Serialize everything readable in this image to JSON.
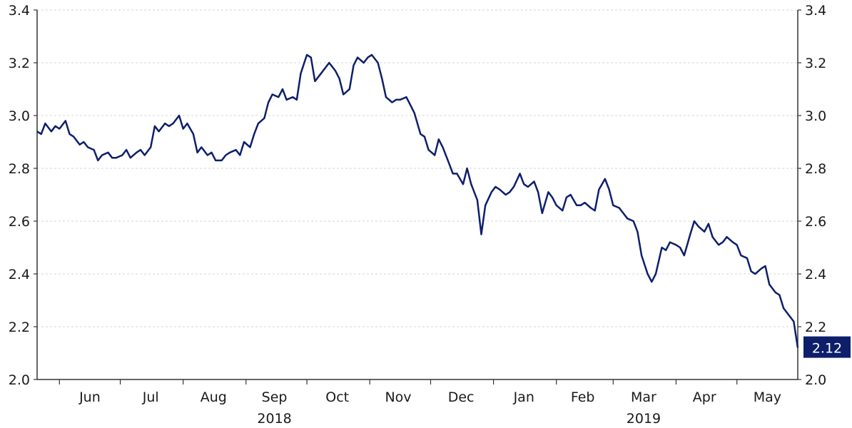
{
  "colors": {
    "line": "#0d1f6b",
    "axis": "#333333",
    "grid": "#d4d4d4",
    "badge_bg": "#0d1f6b",
    "badge_text": "#ffffff"
  },
  "chart_data": {
    "type": "line",
    "title": "",
    "xlabel": "",
    "ylabel": "",
    "ylim": [
      2.0,
      3.4
    ],
    "y_ticks": [
      "2.0",
      "2.2",
      "2.4",
      "2.6",
      "2.8",
      "3.0",
      "3.2",
      "3.4"
    ],
    "y_ticks_right": [
      "2.0",
      "2.2",
      "2.4",
      "2.6",
      "2.8",
      "3.0",
      "3.2",
      "3.4"
    ],
    "grid": "horizontal dashed",
    "x_range": [
      "2018-05-21",
      "2019-05-31"
    ],
    "month_labels": [
      {
        "label": "Jun",
        "date": "2018-06-16"
      },
      {
        "label": "Jul",
        "date": "2018-07-16"
      },
      {
        "label": "Aug",
        "date": "2018-08-16"
      },
      {
        "label": "Sep",
        "date": "2018-09-15"
      },
      {
        "label": "Oct",
        "date": "2018-10-16"
      },
      {
        "label": "Nov",
        "date": "2018-11-15"
      },
      {
        "label": "Dec",
        "date": "2018-12-16"
      },
      {
        "label": "Jan",
        "date": "2019-01-16"
      },
      {
        "label": "Feb",
        "date": "2019-02-14"
      },
      {
        "label": "Mar",
        "date": "2019-03-16"
      },
      {
        "label": "Apr",
        "date": "2019-04-15"
      },
      {
        "label": "May",
        "date": "2019-05-16"
      }
    ],
    "month_boundaries": [
      "2018-06-01",
      "2018-07-01",
      "2018-08-01",
      "2018-09-01",
      "2018-10-01",
      "2018-11-01",
      "2018-12-01",
      "2019-01-01",
      "2019-02-01",
      "2019-03-01",
      "2019-04-01",
      "2019-05-01",
      "2019-06-01"
    ],
    "year_labels": [
      {
        "label": "2018",
        "date": "2018-09-15"
      },
      {
        "label": "2019",
        "date": "2019-03-16"
      }
    ],
    "last_value_label": "2.12",
    "series": [
      {
        "x": [
          "2018-05-21",
          "2018-05-23",
          "2018-05-25",
          "2018-05-28",
          "2018-05-30",
          "2018-06-01",
          "2018-06-04",
          "2018-06-06",
          "2018-06-08",
          "2018-06-11",
          "2018-06-13",
          "2018-06-15",
          "2018-06-18",
          "2018-06-20",
          "2018-06-22",
          "2018-06-25",
          "2018-06-27",
          "2018-06-29",
          "2018-07-02",
          "2018-07-04",
          "2018-07-06",
          "2018-07-09",
          "2018-07-11",
          "2018-07-13",
          "2018-07-16",
          "2018-07-18",
          "2018-07-20",
          "2018-07-23",
          "2018-07-25",
          "2018-07-27",
          "2018-07-30",
          "2018-08-01",
          "2018-08-03",
          "2018-08-06",
          "2018-08-08",
          "2018-08-10",
          "2018-08-13",
          "2018-08-15",
          "2018-08-17",
          "2018-08-20",
          "2018-08-22",
          "2018-08-24",
          "2018-08-27",
          "2018-08-29",
          "2018-08-31",
          "2018-09-03",
          "2018-09-05",
          "2018-09-07",
          "2018-09-10",
          "2018-09-12",
          "2018-09-14",
          "2018-09-17",
          "2018-09-19",
          "2018-09-21",
          "2018-09-24",
          "2018-09-26",
          "2018-09-28",
          "2018-10-01",
          "2018-10-03",
          "2018-10-05",
          "2018-10-08",
          "2018-10-10",
          "2018-10-12",
          "2018-10-15",
          "2018-10-17",
          "2018-10-19",
          "2018-10-22",
          "2018-10-24",
          "2018-10-26",
          "2018-10-29",
          "2018-10-31",
          "2018-11-02",
          "2018-11-05",
          "2018-11-07",
          "2018-11-09",
          "2018-11-12",
          "2018-11-14",
          "2018-11-16",
          "2018-11-19",
          "2018-11-21",
          "2018-11-23",
          "2018-11-26",
          "2018-11-28",
          "2018-11-30",
          "2018-12-03",
          "2018-12-05",
          "2018-12-07",
          "2018-12-10",
          "2018-12-12",
          "2018-12-14",
          "2018-12-17",
          "2018-12-19",
          "2018-12-21",
          "2018-12-24",
          "2018-12-26",
          "2018-12-28",
          "2018-12-31",
          "2019-01-02",
          "2019-01-04",
          "2019-01-07",
          "2019-01-09",
          "2019-01-11",
          "2019-01-14",
          "2019-01-16",
          "2019-01-18",
          "2019-01-21",
          "2019-01-23",
          "2019-01-25",
          "2019-01-28",
          "2019-01-30",
          "2019-02-01",
          "2019-02-04",
          "2019-02-06",
          "2019-02-08",
          "2019-02-11",
          "2019-02-13",
          "2019-02-15",
          "2019-02-18",
          "2019-02-20",
          "2019-02-22",
          "2019-02-25",
          "2019-02-27",
          "2019-03-01",
          "2019-03-04",
          "2019-03-06",
          "2019-03-08",
          "2019-03-11",
          "2019-03-13",
          "2019-03-15",
          "2019-03-18",
          "2019-03-20",
          "2019-03-22",
          "2019-03-25",
          "2019-03-27",
          "2019-03-29",
          "2019-04-01",
          "2019-04-03",
          "2019-04-05",
          "2019-04-08",
          "2019-04-10",
          "2019-04-12",
          "2019-04-15",
          "2019-04-17",
          "2019-04-19",
          "2019-04-22",
          "2019-04-24",
          "2019-04-26",
          "2019-04-29",
          "2019-05-01",
          "2019-05-03",
          "2019-05-06",
          "2019-05-08",
          "2019-05-10",
          "2019-05-13",
          "2019-05-15",
          "2019-05-17",
          "2019-05-20",
          "2019-05-22",
          "2019-05-24",
          "2019-05-27",
          "2019-05-29",
          "2019-05-31"
        ],
        "values": [
          2.94,
          2.93,
          2.97,
          2.94,
          2.96,
          2.95,
          2.98,
          2.93,
          2.92,
          2.89,
          2.9,
          2.88,
          2.87,
          2.83,
          2.85,
          2.86,
          2.84,
          2.84,
          2.85,
          2.87,
          2.84,
          2.86,
          2.87,
          2.85,
          2.88,
          2.96,
          2.94,
          2.97,
          2.96,
          2.97,
          3.0,
          2.95,
          2.97,
          2.93,
          2.86,
          2.88,
          2.85,
          2.86,
          2.83,
          2.83,
          2.85,
          2.86,
          2.87,
          2.85,
          2.9,
          2.88,
          2.93,
          2.97,
          2.99,
          3.05,
          3.08,
          3.07,
          3.1,
          3.06,
          3.07,
          3.06,
          3.16,
          3.23,
          3.22,
          3.13,
          3.16,
          3.18,
          3.2,
          3.17,
          3.14,
          3.08,
          3.1,
          3.19,
          3.22,
          3.2,
          3.22,
          3.23,
          3.2,
          3.14,
          3.07,
          3.05,
          3.06,
          3.06,
          3.07,
          3.04,
          3.01,
          2.93,
          2.92,
          2.87,
          2.85,
          2.91,
          2.88,
          2.82,
          2.78,
          2.78,
          2.74,
          2.8,
          2.74,
          2.68,
          2.55,
          2.66,
          2.71,
          2.73,
          2.72,
          2.7,
          2.71,
          2.73,
          2.78,
          2.74,
          2.73,
          2.75,
          2.71,
          2.63,
          2.71,
          2.69,
          2.66,
          2.64,
          2.69,
          2.7,
          2.66,
          2.66,
          2.67,
          2.65,
          2.64,
          2.72,
          2.76,
          2.72,
          2.66,
          2.65,
          2.63,
          2.61,
          2.6,
          2.56,
          2.47,
          2.4,
          2.37,
          2.4,
          2.5,
          2.49,
          2.52,
          2.51,
          2.5,
          2.47,
          2.55,
          2.6,
          2.58,
          2.56,
          2.59,
          2.54,
          2.51,
          2.52,
          2.54,
          2.52,
          2.51,
          2.47,
          2.46,
          2.41,
          2.4,
          2.42,
          2.43,
          2.36,
          2.33,
          2.32,
          2.27,
          2.24,
          2.22,
          2.12
        ]
      }
    ]
  }
}
